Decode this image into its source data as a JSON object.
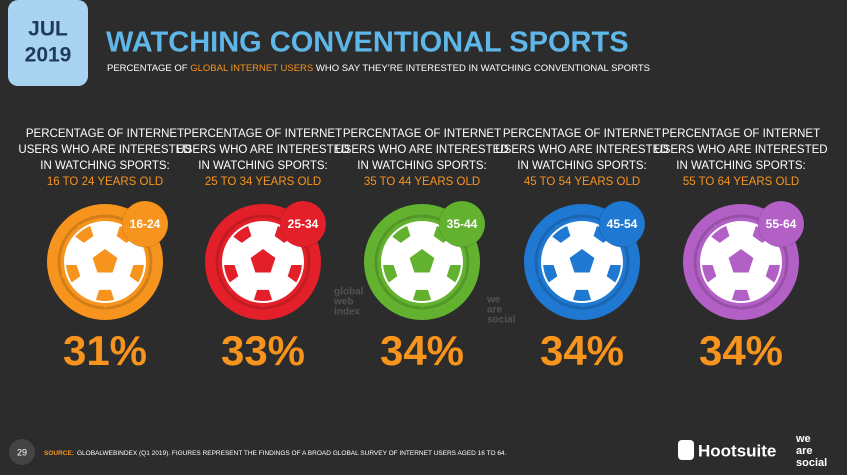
{
  "badge": {
    "month": "JUL",
    "year": "2019"
  },
  "chart_data": {
    "type": "stat",
    "title": "WATCHING CONVENTIONAL SPORTS",
    "subtitle": [
      "PERCENTAGE OF ",
      "GLOBAL INTERNET USERS",
      " WHO SAY THEY’RE INTERESTED IN WATCHING CONVENTIONAL SPORTS"
    ],
    "column_heading": [
      "PERCENTAGE OF INTERNET",
      "USERS WHO ARE INTERESTED",
      "IN WATCHING SPORTS:"
    ],
    "age_ranges": [
      "16 TO 24 YEARS OLD",
      "25 TO 34 YEARS OLD",
      "35 TO 44 YEARS OLD",
      "45 TO 54 YEARS OLD",
      "55 TO 64 YEARS OLD"
    ],
    "categories": [
      "16-24",
      "25-34",
      "35-44",
      "45-54",
      "55-64"
    ],
    "values": [
      31,
      33,
      34,
      34,
      34
    ],
    "value_labels": [
      "31%",
      "33%",
      "34%",
      "34%",
      "34%"
    ],
    "colors": [
      "#f7941d",
      "#e3202a",
      "#62b22f",
      "#1f78d1",
      "#b25fc6"
    ]
  },
  "watermarks": [
    [
      "global",
      "web",
      "index"
    ],
    [
      "we",
      "are",
      "social"
    ]
  ],
  "footer": {
    "page": "29",
    "source_label": "SOURCE:",
    "source": "GLOBALWEBINDEX (Q1 2019). FIGURES REPRESENT THE FINDINGS OF A BROAD GLOBAL SURVEY OF INTERNET USERS AGED 16 TO 64.",
    "brand": "Hootsuite",
    "partner": [
      "we",
      "are",
      "social"
    ]
  }
}
